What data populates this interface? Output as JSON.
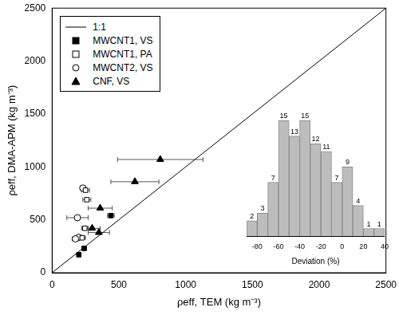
{
  "chart_data": [
    {
      "type": "scatter",
      "xlabel": "ρeff, TEM (kg m⁻³)",
      "ylabel": "ρeff, DMA-APM (kg m⁻³)",
      "xlim": [
        0,
        2500
      ],
      "ylim": [
        0,
        2500
      ],
      "xticks": [
        0,
        500,
        1000,
        1500,
        2000,
        2500
      ],
      "yticks": [
        0,
        500,
        1000,
        1500,
        2000,
        2500
      ],
      "grid": false,
      "legend": "upper left",
      "series": [
        {
          "name": "1:1",
          "type": "line",
          "color": "#000000",
          "line_style": "solid",
          "x": [
            0,
            2500
          ],
          "values": [
            0,
            2500
          ]
        },
        {
          "name": "MWCNT1, VS",
          "color": "#000000",
          "marker": "square",
          "x": [
            200,
            240,
            440
          ],
          "values": [
            170,
            230,
            540
          ],
          "x_error": [
            10,
            15,
            25
          ]
        },
        {
          "name": "MWCNT1, PA",
          "color": "#000000",
          "marker": "open_square",
          "x": [
            260,
            250,
            245,
            225
          ],
          "values": [
            690,
            780,
            420,
            330
          ],
          "x_error": [
            30,
            30,
            25,
            25
          ]
        },
        {
          "name": "MWCNT2, VS",
          "color": "#000000",
          "marker": "open_circle",
          "x": [
            230,
            190,
            200,
            175
          ],
          "values": [
            800,
            520,
            335,
            320
          ],
          "x_error": [
            20,
            80,
            30,
            25
          ]
        },
        {
          "name": "CNF, VS",
          "color": "#000000",
          "marker": "triangle",
          "x": [
            810,
            620,
            360,
            300,
            350
          ],
          "values": [
            1070,
            860,
            610,
            420,
            380
          ],
          "x_error": [
            320,
            180,
            90,
            60,
            80
          ]
        }
      ]
    },
    {
      "type": "histogram",
      "xlabel": "Deviation (%)",
      "bins": [
        -90,
        -80,
        -70,
        -60,
        -50,
        -40,
        -30,
        -20,
        -10,
        0,
        10,
        20,
        30,
        40
      ],
      "values": [
        2,
        3,
        7,
        15,
        13,
        15,
        12,
        11,
        7,
        9,
        4,
        1,
        1
      ],
      "color": "#bdbdbd",
      "xlim": [
        -90,
        40
      ],
      "xticks": [
        -80,
        -60,
        -40,
        -20,
        0,
        20,
        40
      ],
      "ylim": [
        0,
        17
      ],
      "tick_labels": "x",
      "data_labels": true,
      "grid": false
    }
  ]
}
